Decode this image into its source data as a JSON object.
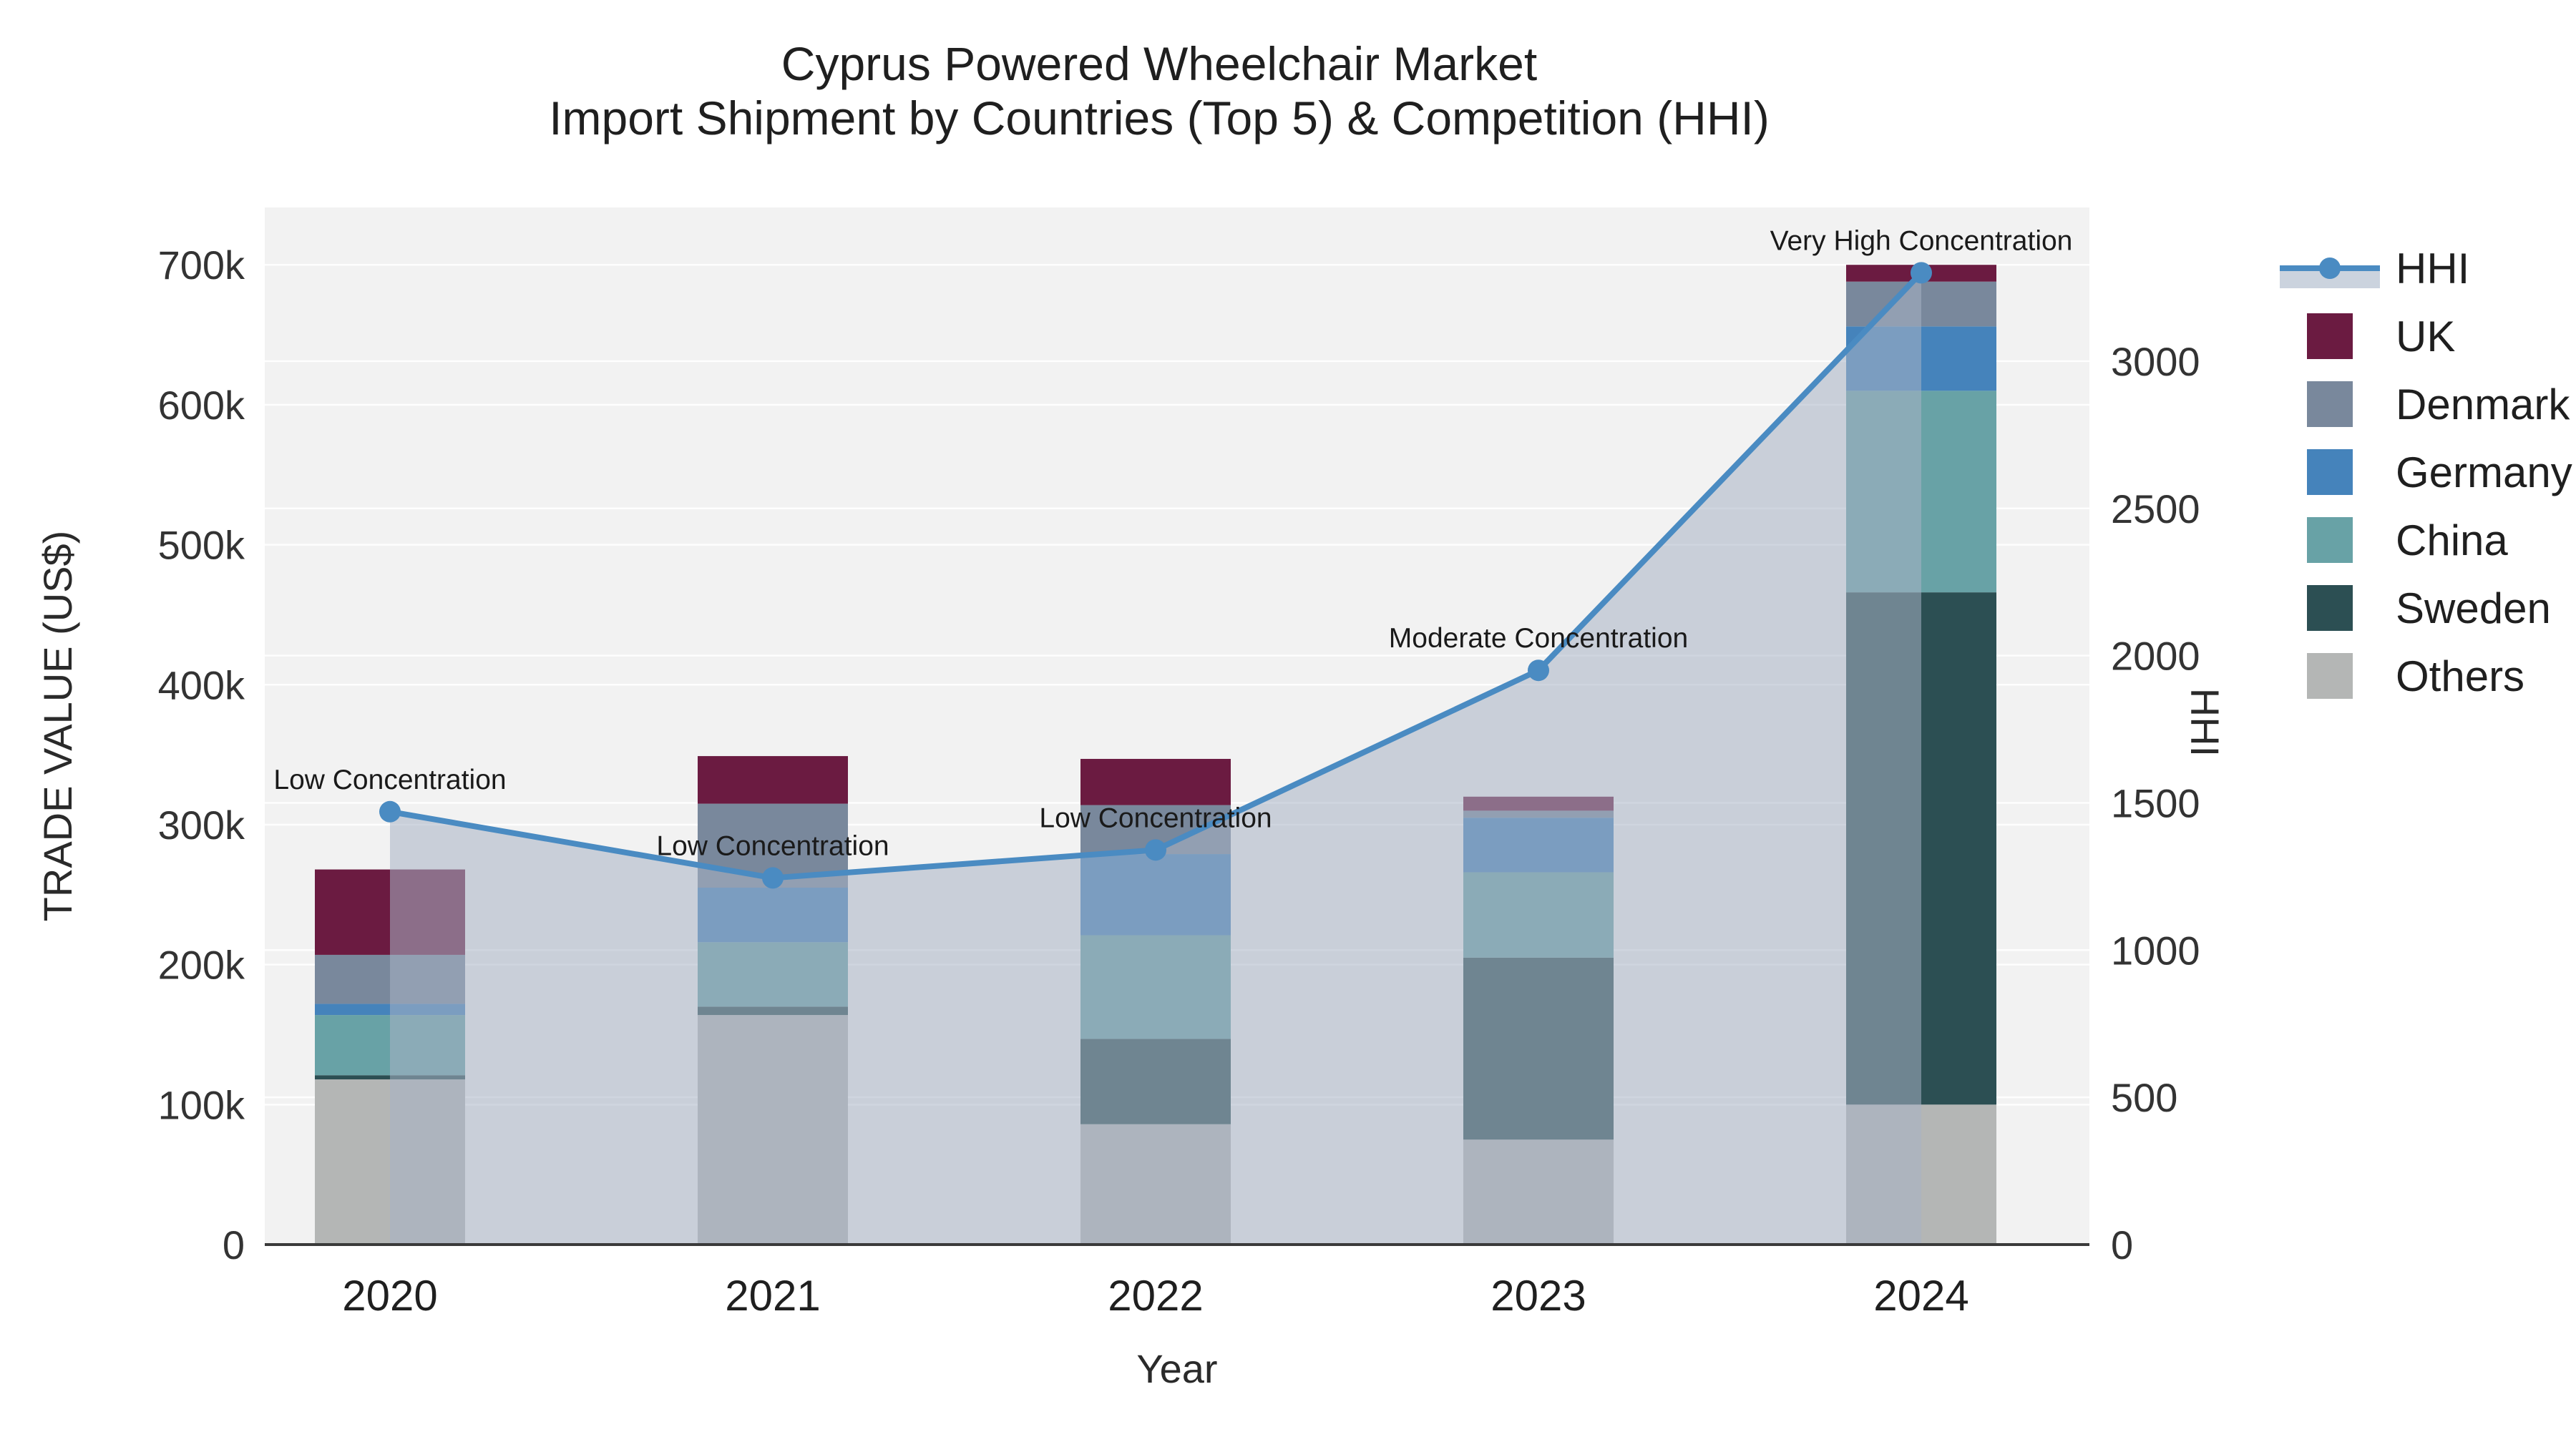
{
  "title": {
    "line1": "Cyprus Powered Wheelchair Market",
    "line2": "Import Shipment by Countries (Top 5) & Competition (HHI)"
  },
  "axes": {
    "left": {
      "title": "TRADE VALUE (US$)",
      "tick_labels": [
        "0",
        "100k",
        "200k",
        "300k",
        "400k",
        "500k",
        "600k",
        "700k"
      ],
      "tick_values": [
        0,
        100,
        200,
        300,
        400,
        500,
        600,
        700
      ],
      "max_value": 741
    },
    "right": {
      "title": "HHI",
      "tick_labels": [
        "0",
        "500",
        "1000",
        "1500",
        "2000",
        "2500",
        "3000"
      ],
      "tick_values": [
        0,
        500,
        1000,
        1500,
        2000,
        2500,
        3000
      ],
      "max_value": 3522
    },
    "x": {
      "title": "Year",
      "tick_labels": [
        "2020",
        "2021",
        "2022",
        "2023",
        "2024"
      ]
    }
  },
  "legend": {
    "items": [
      {
        "label": "HHI",
        "type": "line",
        "color": "#4A8BC2",
        "band_color": "#CBD3DE"
      },
      {
        "label": "UK",
        "type": "swatch",
        "color": "#6B1B41"
      },
      {
        "label": "Denmark",
        "type": "swatch",
        "color": "#79889C"
      },
      {
        "label": "Germany",
        "type": "swatch",
        "color": "#4583BB"
      },
      {
        "label": "China",
        "type": "swatch",
        "color": "#68A2A6"
      },
      {
        "label": "Sweden",
        "type": "swatch",
        "color": "#2C4F53"
      },
      {
        "label": "Others",
        "type": "swatch",
        "color": "#B4B6B5"
      }
    ]
  },
  "chart_data": {
    "type": "bar",
    "subtype": "stacked-bars-with-line",
    "categories": [
      "2020",
      "2021",
      "2022",
      "2023",
      "2024"
    ],
    "series": [
      {
        "name": "UK",
        "color": "#6B1B41",
        "values": [
          61,
          34,
          33,
          10,
          12
        ]
      },
      {
        "name": "Denmark",
        "color": "#79889C",
        "values": [
          35,
          60,
          35,
          5,
          32
        ]
      },
      {
        "name": "Germany",
        "color": "#4583BB",
        "values": [
          8,
          39,
          58,
          39,
          46
        ]
      },
      {
        "name": "China",
        "color": "#68A2A6",
        "values": [
          43,
          46,
          74,
          61,
          144
        ]
      },
      {
        "name": "Sweden",
        "color": "#2C4F53",
        "values": [
          3,
          6,
          61,
          130,
          366
        ]
      },
      {
        "name": "Others",
        "color": "#B4B6B5",
        "values": [
          118,
          164,
          86,
          75,
          100
        ]
      }
    ],
    "stack_order_bottom_up": [
      "Others",
      "Sweden",
      "China",
      "Germany",
      "Denmark",
      "UK"
    ],
    "bar_totals_k": [
      268,
      349,
      347,
      320,
      700
    ],
    "line_series": {
      "name": "HHI",
      "color": "#4A8BC2",
      "area_fill": "rgba(168,178,196,0.55)",
      "values": [
        1470,
        1245,
        1340,
        1950,
        3300
      ]
    },
    "annotations": [
      {
        "category": "2020",
        "text": "Low Concentration"
      },
      {
        "category": "2021",
        "text": "Low Concentration"
      },
      {
        "category": "2022",
        "text": "Low Concentration"
      },
      {
        "category": "2023",
        "text": "Moderate Concentration"
      },
      {
        "category": "2024",
        "text": "Very High Concentration"
      }
    ],
    "title": "Cyprus Powered Wheelchair Market — Import Shipment by Countries (Top 5) & Competition (HHI)",
    "xlabel": "Year",
    "ylabel_left": "TRADE VALUE (US$)",
    "ylabel_right": "HHI",
    "ylim_left_k": [
      0,
      741
    ],
    "ylim_right": [
      0,
      3522
    ],
    "values_unit": "US$ thousands",
    "grid": true,
    "legend_position": "right",
    "plot_bg": "#F2F2F2",
    "grid_color": "rgba(255,255,255,0.9)",
    "baseline_color": "#3a3a3a"
  }
}
